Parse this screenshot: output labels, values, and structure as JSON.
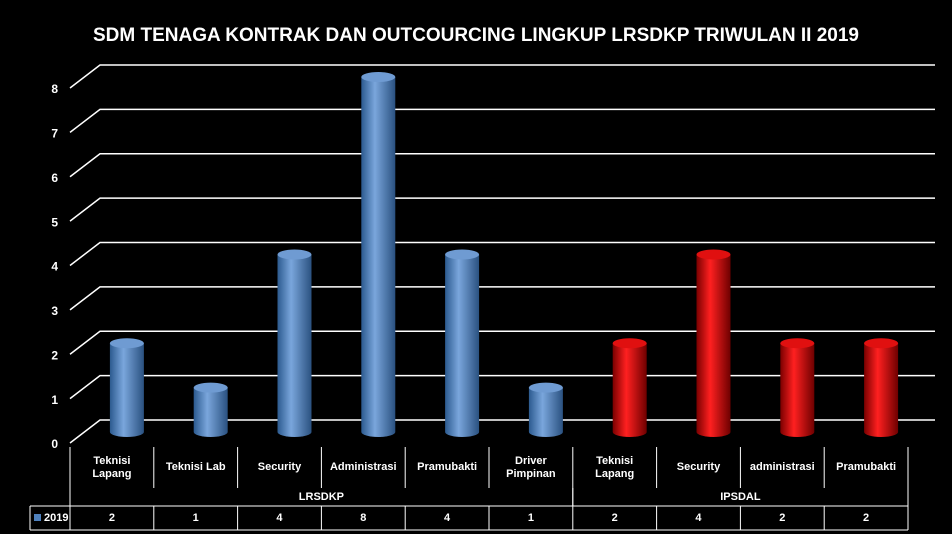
{
  "chart_data": {
    "type": "bar3d",
    "title": "SDM TENAGA KONTRAK DAN OUTCOURCING LINGKUP LRSDKP TRIWULAN II 2019",
    "groups": [
      {
        "label": "LRSDKP",
        "color": "#4f81bd",
        "categories": [
          "Teknisi Lapang",
          "Teknisi Lab",
          "Security",
          "Administrasi",
          "Pramubakti",
          "Driver Pimpinan"
        ]
      },
      {
        "label": "IPSDAL",
        "color": "#c00000",
        "categories": [
          "Teknisi Lapang",
          "Security",
          "administrasi",
          "Pramubakti"
        ]
      }
    ],
    "series": [
      {
        "name": "2019",
        "color": "#4f81bd",
        "values": [
          2,
          1,
          4,
          8,
          4,
          1,
          2,
          4,
          2,
          2
        ]
      }
    ],
    "ylim": [
      0,
      8
    ],
    "yticks": [
      0,
      1,
      2,
      3,
      4,
      5,
      6,
      7,
      8
    ],
    "grid": true,
    "data_table": true
  }
}
